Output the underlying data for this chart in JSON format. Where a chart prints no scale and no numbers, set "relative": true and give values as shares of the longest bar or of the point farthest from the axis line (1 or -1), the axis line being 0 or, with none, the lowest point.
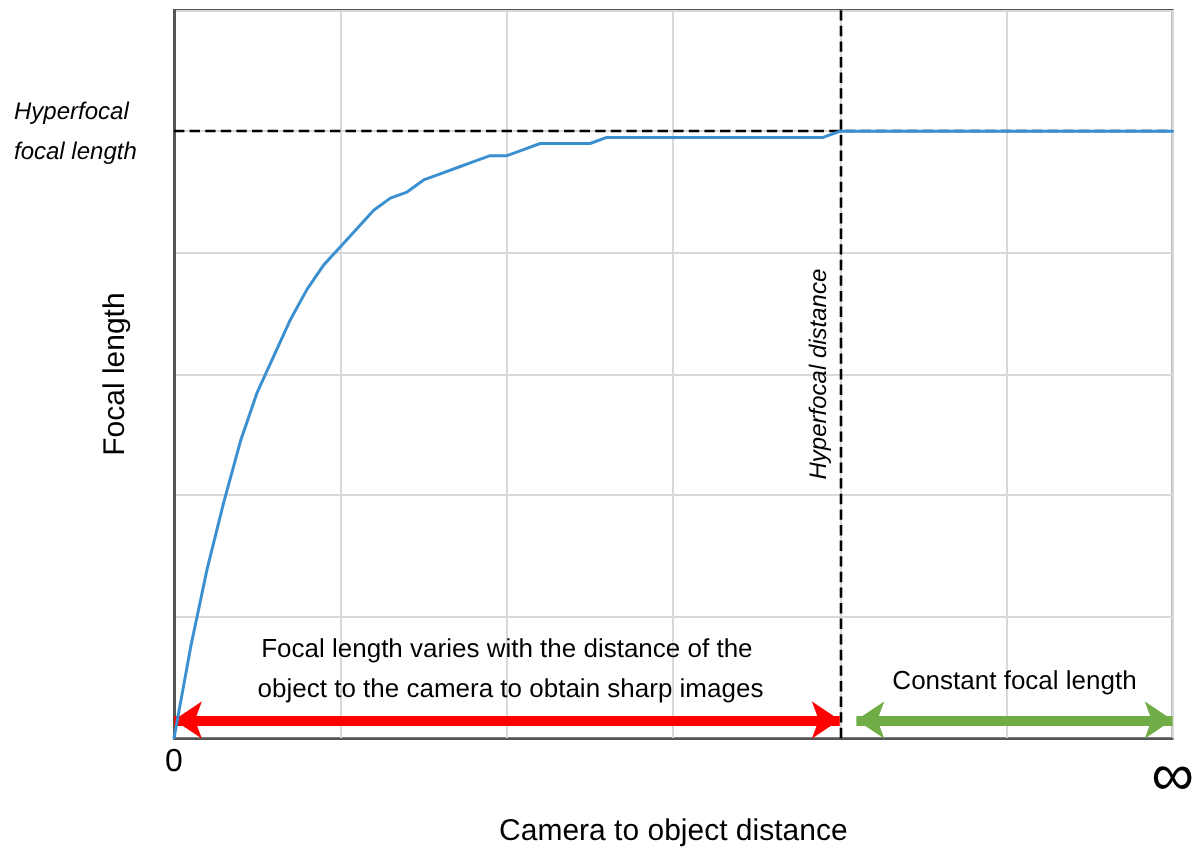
{
  "chart_data": {
    "type": "line",
    "relative": true,
    "xlabel": "Camera to object distance",
    "ylabel": "Focal length",
    "categories": [
      "0",
      null,
      null,
      null,
      null,
      null,
      null,
      null,
      null,
      null,
      null,
      null,
      null,
      null,
      null,
      null,
      null,
      null,
      null,
      null,
      null,
      null,
      null,
      null,
      null,
      null,
      null,
      null,
      null,
      null,
      null,
      null,
      null,
      null,
      null,
      null,
      null,
      null,
      null,
      null,
      null,
      null,
      null,
      null,
      null,
      null,
      null,
      null,
      null,
      null,
      null,
      null,
      null,
      null,
      null,
      null,
      null,
      null,
      null,
      null,
      "∞"
    ],
    "series": [
      {
        "color": "#3a8fd0",
        "values": [
          0,
          0.15,
          0.28,
          0.39,
          0.49,
          0.57,
          0.63,
          0.69,
          0.74,
          0.78,
          0.81,
          0.84,
          0.87,
          0.89,
          0.9,
          0.92,
          0.93,
          0.94,
          0.95,
          0.96,
          0.96,
          0.97,
          0.98,
          0.98,
          0.98,
          0.98,
          0.99,
          0.99,
          0.99,
          0.99,
          0.99,
          0.99,
          0.99,
          0.99,
          0.99,
          0.99,
          0.99,
          0.99,
          0.99,
          0.99,
          1,
          1,
          1,
          1,
          1,
          1,
          1,
          1,
          1,
          1,
          1,
          1,
          1,
          1,
          1,
          1,
          1,
          1,
          1,
          1,
          1
        ]
      }
    ],
    "ref_lines": [
      {
        "axis": "y",
        "value": 1,
        "label": "Hyperfocal focal length",
        "line_style": "dashed",
        "color": "#000000"
      }
    ],
    "annotations": [
      "Hyperfocal distance",
      "Focal length varies with the distance of the object to the camera to obtain sharp images",
      "Constant focal length"
    ],
    "grid": true,
    "marker": "none",
    "line_style": "solid"
  }
}
